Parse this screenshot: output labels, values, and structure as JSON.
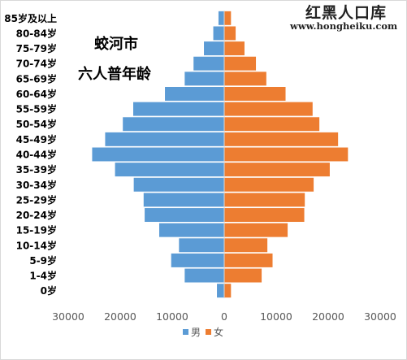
{
  "watermark": {
    "brand": "红黑人口库",
    "url": "www.hongheiku.com"
  },
  "chart_data": {
    "type": "bar",
    "orientation": "horizontal",
    "subtype": "population-pyramid",
    "title_lines": [
      "蛟河市",
      "六人普年龄"
    ],
    "categories": [
      "85岁及以上",
      "80-84岁",
      "75-79岁",
      "70-74岁",
      "65-69岁",
      "60-64岁",
      "55-59岁",
      "50-54岁",
      "45-49岁",
      "40-44岁",
      "35-39岁",
      "30-34岁",
      "25-29岁",
      "20-24岁",
      "15-19岁",
      "10-14岁",
      "5-9岁",
      "1-4岁",
      "0岁"
    ],
    "series": [
      {
        "name": "男",
        "color": "#5b9bd5",
        "side": "left",
        "values": [
          1100,
          2100,
          3900,
          5900,
          7600,
          11400,
          17500,
          19500,
          22900,
          25400,
          21000,
          17400,
          15500,
          15300,
          12500,
          8700,
          10200,
          7600,
          1400
        ]
      },
      {
        "name": "女",
        "color": "#ed7d31",
        "side": "right",
        "values": [
          1300,
          2200,
          3900,
          6100,
          8100,
          11800,
          17000,
          18300,
          21900,
          23800,
          20300,
          17200,
          15500,
          15400,
          12200,
          8300,
          9300,
          7200,
          1300
        ]
      }
    ],
    "xaxis": {
      "range": [
        -30000,
        30000
      ],
      "tick_labels": [
        "30000",
        "20000",
        "10000",
        "0",
        "10000",
        "20000",
        "30000"
      ]
    },
    "grid": false,
    "legend_position": "bottom"
  }
}
